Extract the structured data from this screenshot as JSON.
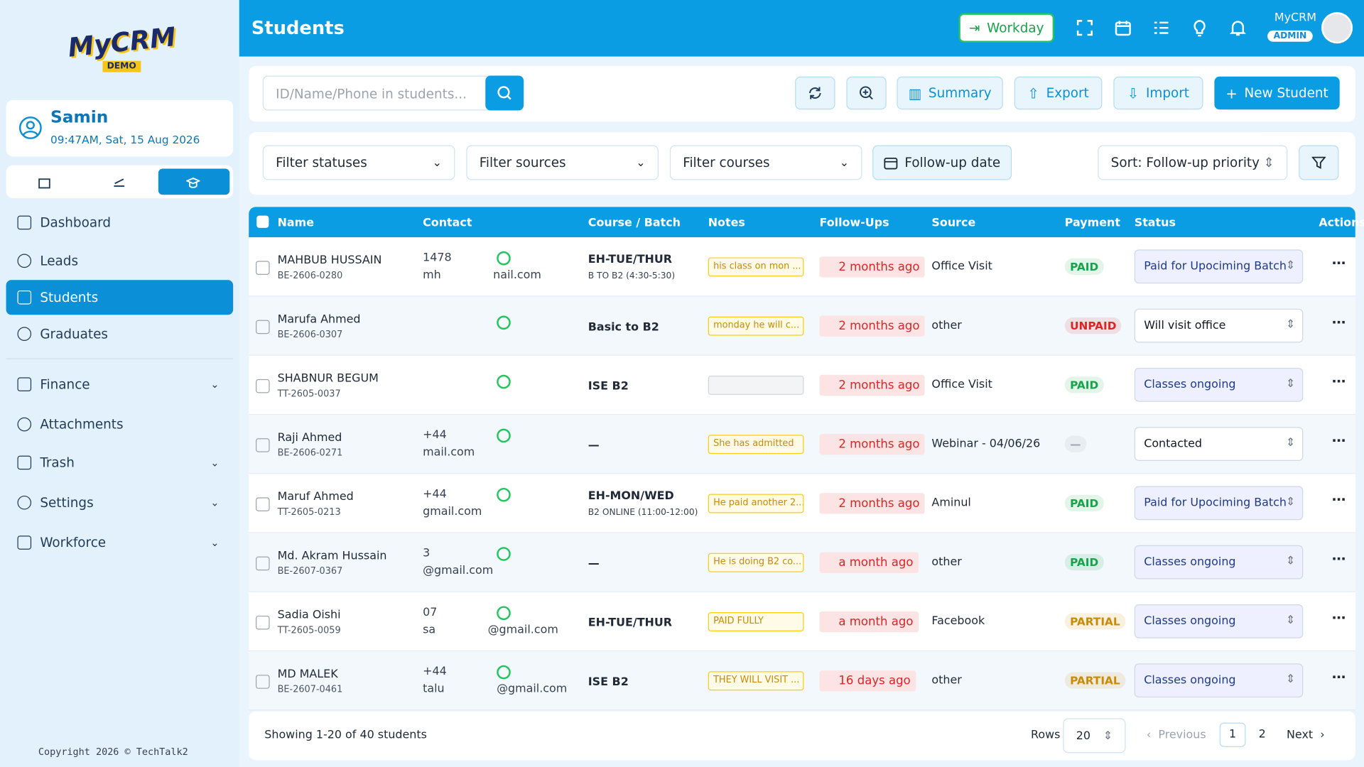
{
  "brand": {
    "line1": "MyCRM",
    "line2": "DEMO"
  },
  "user": {
    "name": "Samin",
    "datetime": "09:47AM, Sat, 15 Aug 2026"
  },
  "nav": [
    {
      "label": "Dashboard"
    },
    {
      "label": "Leads"
    },
    {
      "label": "Students",
      "active": true
    },
    {
      "label": "Graduates"
    },
    {
      "label": "Finance",
      "expandable": true
    },
    {
      "label": "Attachments"
    },
    {
      "label": "Trash",
      "expandable": true
    },
    {
      "label": "Settings",
      "expandable": true
    },
    {
      "label": "Workforce",
      "expandable": true
    }
  ],
  "copyright": "Copyright 2026 © TechTalk2",
  "header": {
    "title": "Students",
    "workday": "Workday",
    "app": "MyCRM",
    "role": "ADMIN"
  },
  "toolbar": {
    "search_placeholder": "ID/Name/Phone in students...",
    "buttons": [
      "Summary",
      "Export",
      "Import",
      "New Student"
    ]
  },
  "filters": {
    "selects": [
      "Filter statuses",
      "Filter sources",
      "Filter courses"
    ],
    "followup": "Follow-up date",
    "sort": "Sort: Follow-up priority"
  },
  "table": {
    "columns": [
      "Name",
      "Contact",
      "Course / Batch",
      "Notes",
      "Follow-Ups",
      "Source",
      "Payment",
      "Status",
      "Actions"
    ],
    "rows": [
      {
        "name": "MAHBUB HUSSAIN",
        "id": "BE-2606-0280",
        "contact": [
          [
            "1478"
          ],
          [
            "mh",
            "nail.com"
          ]
        ],
        "course": "EH-TUE/THUR",
        "batch": "B TO B2 (4:30-5:30)",
        "note": "his class on mon ...",
        "followup": "2 months ago",
        "source": "Office Visit",
        "payment": "PAID",
        "payment_color": "#16a34a",
        "status": "Paid for Upociming Batch",
        "status_tone": "#eef0ff"
      },
      {
        "name": "Marufa Ahmed",
        "id": "BE-2606-0307",
        "contact": [
          [],
          []
        ],
        "course": "Basic to B2",
        "note": "monday he will c...",
        "followup": "2 months ago",
        "source": "other",
        "payment": "UNPAID",
        "payment_color": "#dc2626",
        "status": "Will visit office",
        "status_tone": "#ffffff"
      },
      {
        "name": "SHABNUR BEGUM",
        "id": "TT-2605-0037",
        "contact": [
          [],
          []
        ],
        "course": "ISE B2",
        "note": "",
        "followup": "2 months ago",
        "source": "Office Visit",
        "payment": "PAID",
        "payment_color": "#16a34a",
        "status": "Classes ongoing",
        "status_tone": "#eef0ff"
      },
      {
        "name": "Raji Ahmed",
        "id": "BE-2606-0271",
        "contact": [
          [
            "+44"
          ],
          [
            "mail.com"
          ]
        ],
        "course": "—",
        "note": "She has admitted",
        "followup": "2 months ago",
        "source": "Webinar - 04/06/26",
        "payment": "—",
        "payment_color": "#9ca3af",
        "status": "Contacted",
        "status_tone": "#ffffff"
      },
      {
        "name": "Maruf Ahmed",
        "id": "TT-2605-0213",
        "contact": [
          [
            "+44"
          ],
          [
            "gmail.com"
          ]
        ],
        "course": "EH-MON/WED",
        "batch": "B2 ONLINE (11:00-12:00)",
        "note": "He paid another 2...",
        "followup": "2 months ago",
        "source": "Aminul",
        "payment": "PAID",
        "payment_color": "#16a34a",
        "status": "Paid for Upociming Batch",
        "status_tone": "#eef0ff"
      },
      {
        "name": "Md. Akram Hussain",
        "id": "BE-2607-0367",
        "contact": [
          [
            "3"
          ],
          [
            "@gmail.com"
          ]
        ],
        "course": "—",
        "note": "He is doing B2 co...",
        "followup": "a month ago",
        "source": "other",
        "payment": "PAID",
        "payment_color": "#16a34a",
        "status": "Classes ongoing",
        "status_tone": "#eef0ff"
      },
      {
        "name": "Sadia Oishi",
        "id": "TT-2605-0059",
        "contact": [
          [
            "07"
          ],
          [
            "sa",
            "@gmail.com"
          ]
        ],
        "course": "EH-TUE/THUR",
        "note": "PAID FULLY",
        "followup": "a month ago",
        "source": "Facebook",
        "payment": "PARTIAL",
        "payment_color": "#ca8a04",
        "status": "Classes ongoing",
        "status_tone": "#eef0ff"
      },
      {
        "name": "MD MALEK",
        "id": "BE-2607-0461",
        "contact": [
          [
            "+44"
          ],
          [
            "talu",
            "@gmail.com"
          ]
        ],
        "course": "ISE B2",
        "note": "THEY WILL VISIT ...",
        "followup": "16 days ago",
        "source": "other",
        "payment": "PARTIAL",
        "payment_color": "#ca8a04",
        "status": "Classes ongoing",
        "status_tone": "#eef0ff"
      }
    ]
  },
  "footer": {
    "showing": "Showing 1-20 of 40 students",
    "rows_label": "Rows",
    "rows_value": "20",
    "previous": "Previous",
    "pages": [
      "1",
      "2"
    ],
    "next": "Next"
  }
}
